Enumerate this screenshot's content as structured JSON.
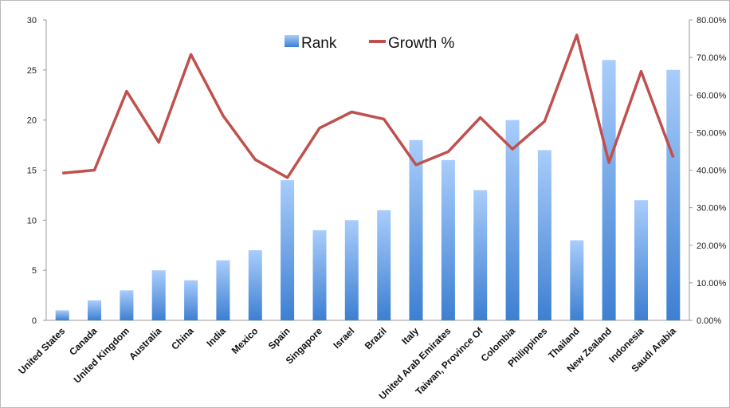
{
  "chart_data": {
    "type": "bar",
    "categories": [
      "United States",
      "Canada",
      "United Kingdom",
      "Australia",
      "China",
      "India",
      "Mexico",
      "Spain",
      "Singapore",
      "Israel",
      "Brazil",
      "Italy",
      "United Arab Emirates",
      "Taiwan, Province Of",
      "Colombia",
      "Philippines",
      "Thailand",
      "New Zealand",
      "Indonesia",
      "Saudi Arabia"
    ],
    "series": [
      {
        "name": "Rank",
        "kind": "bar",
        "axis": "left",
        "color": "#4a8ad8",
        "values": [
          1,
          2,
          3,
          5,
          4,
          6,
          7,
          14,
          9,
          10,
          11,
          18,
          16,
          13,
          20,
          17,
          8,
          26,
          12,
          25
        ]
      },
      {
        "name": "Growth %",
        "kind": "line",
        "axis": "right",
        "color": "#c0504d",
        "values": [
          0.392,
          0.4,
          0.61,
          0.474,
          0.708,
          0.545,
          0.428,
          0.38,
          0.512,
          0.555,
          0.536,
          0.414,
          0.449,
          0.54,
          0.456,
          0.53,
          0.76,
          0.42,
          0.663,
          0.434
        ]
      }
    ],
    "y_left": {
      "ticks": [
        "0",
        "5",
        "10",
        "15",
        "20",
        "25",
        "30"
      ],
      "range": [
        0,
        30
      ]
    },
    "y_right": {
      "ticks": [
        "0.00%",
        "10.00%",
        "20.00%",
        "30.00%",
        "40.00%",
        "50.00%",
        "60.00%",
        "70.00%",
        "80.00%"
      ],
      "range": [
        0,
        0.8
      ]
    },
    "legend": {
      "position": "top-center",
      "labels": [
        "Rank",
        "Growth %"
      ]
    },
    "grid": false,
    "title": ""
  }
}
